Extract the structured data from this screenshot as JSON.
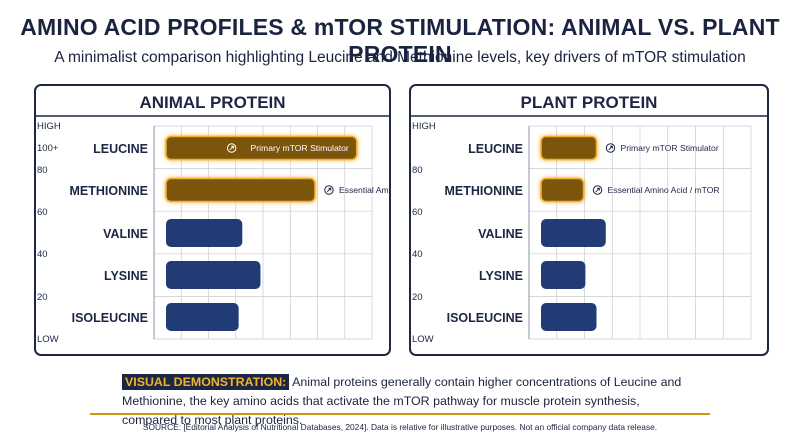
{
  "title": "AMINO ACID PROFILES & mTOR STIMULATION: ANIMAL VS. PLANT PROTEIN",
  "subtitle": "A minimalist comparison highlighting Leucine and Methionine levels, key drivers of mTOR stimulation",
  "note": {
    "tag": "VISUAL DEMONSTRATION:",
    "text": "Animal proteins generally contain higher concentrations of Leucine and Methionine, the key amino acids that activate the mTOR pathway for muscle protein synthesis, compared to most plant proteins."
  },
  "source": "SOURCE: [Editorial Analysis of Nutritional Databases, 2024]. Data is relative for illustrative purposes. Not an official company data release.",
  "colors": {
    "highlight": "#7b5411",
    "highlight_glow": "#f2b02f",
    "default": "#213c74",
    "frame": "#1d2744"
  },
  "chart_data": [
    {
      "type": "bar",
      "orientation": "horizontal",
      "title": "ANIMAL PROTEIN",
      "categories": [
        "LEUCINE",
        "METHIONINE",
        "VALINE",
        "LYSINE",
        "ISOLEUCINE"
      ],
      "values": [
        105,
        82,
        42,
        52,
        40
      ],
      "highlight": [
        true,
        true,
        false,
        false,
        false
      ],
      "annotations": [
        "Primary mTOR Stimulator",
        "Essential Amino Acid / mTOR",
        "",
        "",
        ""
      ],
      "yticks": [
        "HIGH",
        "100+",
        "80",
        "60",
        "40",
        "20",
        "LOW"
      ],
      "xlim": [
        0,
        120
      ],
      "grid": true
    },
    {
      "type": "bar",
      "orientation": "horizontal",
      "title": "PLANT PROTEIN",
      "categories": [
        "LEUCINE",
        "METHIONINE",
        "VALINE",
        "LYSINE",
        "ISOLEUCINE"
      ],
      "values": [
        30,
        23,
        35,
        24,
        30
      ],
      "highlight": [
        true,
        true,
        false,
        false,
        false
      ],
      "annotations": [
        "Primary mTOR Stimulator",
        "Essential Amino Acid / mTOR",
        "",
        "",
        ""
      ],
      "yticks": [
        "HIGH",
        "80",
        "60",
        "40",
        "20",
        "LOW"
      ],
      "xlim": [
        0,
        120
      ],
      "grid": true
    }
  ]
}
